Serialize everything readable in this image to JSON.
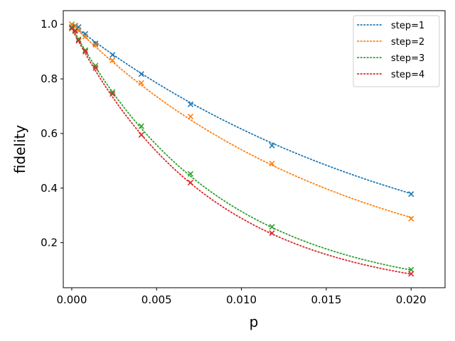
{
  "chart_data": {
    "type": "scatter",
    "title": "",
    "xlabel": "p",
    "ylabel": "fidelity",
    "xlim": [
      -0.0005,
      0.022
    ],
    "ylim": [
      0.035,
      1.05
    ],
    "xticks": [
      0.0,
      0.005,
      0.01,
      0.015,
      0.02
    ],
    "xtick_labels": [
      "0.000",
      "0.005",
      "0.010",
      "0.015",
      "0.020"
    ],
    "yticks": [
      0.2,
      0.4,
      0.6,
      0.8,
      1.0
    ],
    "ytick_labels": [
      "0.2",
      "0.4",
      "0.6",
      "0.8",
      "1.0"
    ],
    "grid": false,
    "legend_position": "top-right",
    "fit_style": "dotted line",
    "point_marker": "x",
    "series": [
      {
        "name": "step=1",
        "legend_label": "step=1",
        "color": "#1f77b4",
        "points": [
          [
            0.0,
            1.0
          ],
          [
            0.0002,
            0.995
          ],
          [
            0.0004,
            0.99
          ],
          [
            0.0008,
            0.965
          ],
          [
            0.0014,
            0.93
          ],
          [
            0.0024,
            0.888
          ],
          [
            0.0041,
            0.818
          ],
          [
            0.007,
            0.707
          ],
          [
            0.0118,
            0.556
          ],
          [
            0.02,
            0.378
          ]
        ],
        "fit_rate": 48.4
      },
      {
        "name": "step=2",
        "legend_label": "step=2",
        "color": "#ff7f0e",
        "points": [
          [
            0.0,
            1.0
          ],
          [
            0.0002,
            0.992
          ],
          [
            0.0004,
            0.98
          ],
          [
            0.0008,
            0.955
          ],
          [
            0.0014,
            0.925
          ],
          [
            0.0024,
            0.868
          ],
          [
            0.0041,
            0.785
          ],
          [
            0.007,
            0.662
          ],
          [
            0.0118,
            0.49
          ],
          [
            0.02,
            0.288
          ]
        ],
        "fit_rate": 61.5
      },
      {
        "name": "step=3",
        "legend_label": "step=3",
        "color": "#2ca02c",
        "points": [
          [
            0.0,
            0.99
          ],
          [
            0.0002,
            0.978
          ],
          [
            0.0004,
            0.945
          ],
          [
            0.0008,
            0.905
          ],
          [
            0.0014,
            0.848
          ],
          [
            0.0024,
            0.752
          ],
          [
            0.0041,
            0.627
          ],
          [
            0.007,
            0.452
          ],
          [
            0.0118,
            0.258
          ],
          [
            0.02,
            0.101
          ]
        ],
        "fit_rate": 114.7
      },
      {
        "name": "step=4",
        "legend_label": "step=4",
        "color": "#d62728",
        "points": [
          [
            0.0,
            0.985
          ],
          [
            0.0002,
            0.975
          ],
          [
            0.0004,
            0.94
          ],
          [
            0.0008,
            0.9
          ],
          [
            0.0014,
            0.84
          ],
          [
            0.0024,
            0.745
          ],
          [
            0.0041,
            0.595
          ],
          [
            0.007,
            0.42
          ],
          [
            0.0118,
            0.235
          ],
          [
            0.02,
            0.086
          ]
        ],
        "fit_rate": 122.5
      }
    ]
  }
}
